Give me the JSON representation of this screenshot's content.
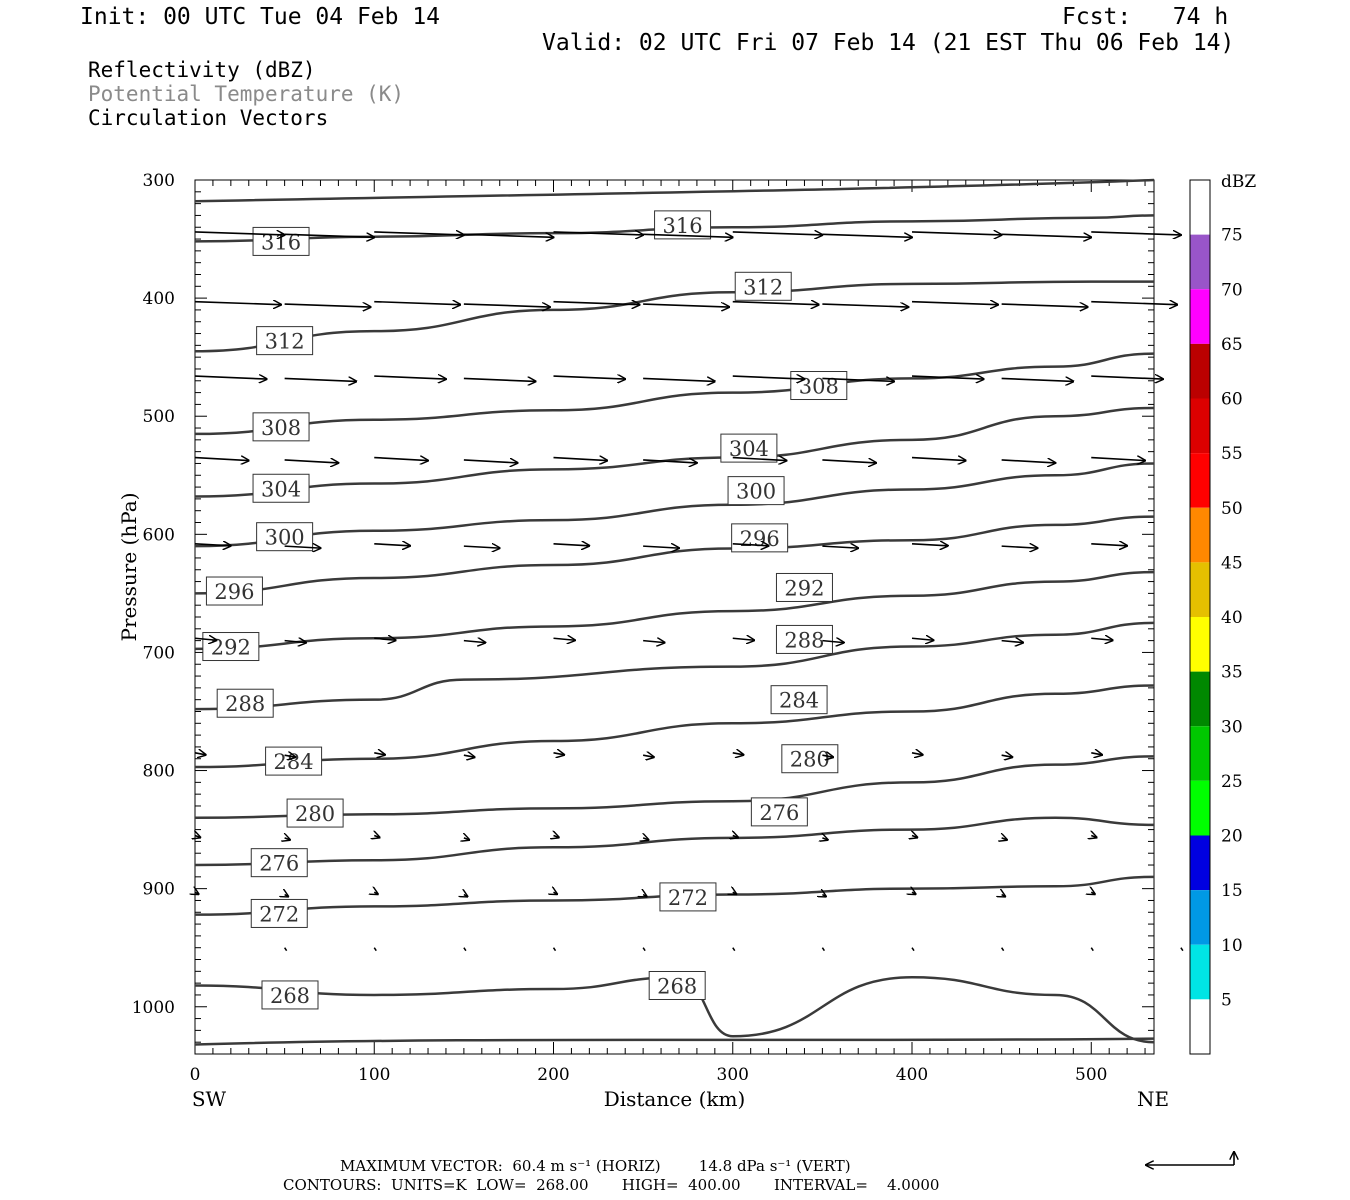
{
  "header": {
    "init": "Init: 00 UTC Tue 04 Feb 14",
    "fcst": "Fcst:   74 h",
    "valid": "Valid: 02 UTC Fri 07 Feb 14 (21 EST Thu 06 Feb 14)"
  },
  "legend": {
    "line1": "Reflectivity (dBZ)",
    "line2": "Potential Temperature (K)",
    "line3": "Circulation Vectors"
  },
  "footer": {
    "max_vector": "MAXIMUM VECTOR:  60.4 m s⁻¹ (HORIZ)        14.8 dPa s⁻¹ (VERT)",
    "contours": "CONTOURS:  UNITS=K  LOW=  268.00       HIGH=  400.00       INTERVAL=    4.0000"
  },
  "chart_data": {
    "type": "line",
    "title": "",
    "xlabel": "Distance (km)",
    "ylabel": "Pressure (hPa)",
    "x_left_label": "SW",
    "x_right_label": "NE",
    "xlim": [
      0,
      535
    ],
    "ylim": [
      1040,
      300
    ],
    "xticks": [
      0,
      100,
      200,
      300,
      400,
      500
    ],
    "yticks": [
      300,
      400,
      500,
      600,
      700,
      800,
      900,
      1000
    ],
    "colorbar": {
      "units": "dBZ",
      "levels": [
        5,
        10,
        15,
        20,
        25,
        30,
        35,
        40,
        45,
        50,
        55,
        60,
        65,
        70,
        75
      ],
      "colors": [
        "#ffffff",
        "#00e5e5",
        "#0099e5",
        "#0000e0",
        "#00ff00",
        "#00c800",
        "#008800",
        "#ffff00",
        "#e5c000",
        "#ff8800",
        "#ff0000",
        "#dd0000",
        "#bb0000",
        "#ff00ff",
        "#9955c9",
        "#ffffff"
      ]
    },
    "series": [
      {
        "name": "316",
        "label_at": [
          48,
          352
        ],
        "values": [
          [
            0,
            352
          ],
          [
            100,
            348
          ],
          [
            200,
            345
          ],
          [
            300,
            340
          ],
          [
            400,
            335
          ],
          [
            500,
            332
          ],
          [
            535,
            330
          ]
        ]
      },
      {
        "name": "312",
        "label_at": [
          50,
          436
        ],
        "values": [
          [
            0,
            445
          ],
          [
            100,
            428
          ],
          [
            200,
            410
          ],
          [
            300,
            395
          ],
          [
            400,
            388
          ],
          [
            500,
            386
          ],
          [
            535,
            386
          ]
        ]
      },
      {
        "name": "308",
        "label_at": [
          48,
          509
        ],
        "values": [
          [
            0,
            515
          ],
          [
            100,
            503
          ],
          [
            200,
            495
          ],
          [
            300,
            480
          ],
          [
            400,
            468
          ],
          [
            480,
            458
          ],
          [
            535,
            447
          ]
        ]
      },
      {
        "name": "304",
        "label_at": [
          48,
          561
        ],
        "values": [
          [
            0,
            568
          ],
          [
            100,
            557
          ],
          [
            200,
            545
          ],
          [
            300,
            535
          ],
          [
            400,
            520
          ],
          [
            480,
            500
          ],
          [
            535,
            493
          ]
        ]
      },
      {
        "name": "300",
        "label_at": [
          50,
          602
        ],
        "values": [
          [
            0,
            610
          ],
          [
            100,
            597
          ],
          [
            200,
            588
          ],
          [
            300,
            575
          ],
          [
            400,
            562
          ],
          [
            480,
            550
          ],
          [
            535,
            540
          ]
        ]
      },
      {
        "name": "296",
        "label_at": [
          22,
          648
        ],
        "values": [
          [
            0,
            650
          ],
          [
            100,
            637
          ],
          [
            200,
            626
          ],
          [
            300,
            612
          ],
          [
            400,
            605
          ],
          [
            480,
            592
          ],
          [
            535,
            585
          ]
        ]
      },
      {
        "name": "292",
        "label_at": [
          20,
          695
        ],
        "values": [
          [
            0,
            697
          ],
          [
            100,
            688
          ],
          [
            200,
            678
          ],
          [
            300,
            665
          ],
          [
            400,
            652
          ],
          [
            480,
            640
          ],
          [
            535,
            632
          ]
        ]
      },
      {
        "name": "288",
        "label_at": [
          28,
          743
        ],
        "values": [
          [
            0,
            748
          ],
          [
            100,
            740
          ],
          [
            150,
            723
          ],
          [
            300,
            712
          ],
          [
            400,
            695
          ],
          [
            480,
            685
          ],
          [
            535,
            675
          ]
        ]
      },
      {
        "name": "284",
        "label_at": [
          55,
          792
        ],
        "values": [
          [
            0,
            797
          ],
          [
            100,
            790
          ],
          [
            200,
            775
          ],
          [
            300,
            760
          ],
          [
            400,
            750
          ],
          [
            480,
            735
          ],
          [
            535,
            728
          ]
        ]
      },
      {
        "name": "280",
        "label_at": [
          67,
          836
        ],
        "values": [
          [
            0,
            840
          ],
          [
            100,
            837
          ],
          [
            200,
            832
          ],
          [
            300,
            826
          ],
          [
            400,
            810
          ],
          [
            480,
            795
          ],
          [
            535,
            788
          ]
        ]
      },
      {
        "name": "276",
        "label_at": [
          47,
          878
        ],
        "values": [
          [
            0,
            880
          ],
          [
            100,
            876
          ],
          [
            200,
            865
          ],
          [
            300,
            857
          ],
          [
            400,
            850
          ],
          [
            480,
            840
          ],
          [
            535,
            846
          ]
        ]
      },
      {
        "name": "272",
        "label_at": [
          47,
          921
        ],
        "values": [
          [
            0,
            922
          ],
          [
            100,
            915
          ],
          [
            200,
            910
          ],
          [
            300,
            905
          ],
          [
            400,
            900
          ],
          [
            480,
            898
          ],
          [
            535,
            890
          ]
        ]
      },
      {
        "name": "268",
        "label_at": [
          53,
          990
        ],
        "values": [
          [
            0,
            982
          ],
          [
            100,
            990
          ],
          [
            200,
            985
          ],
          [
            270,
            975
          ],
          [
            300,
            1025
          ],
          [
            400,
            975
          ],
          [
            480,
            990
          ],
          [
            535,
            1030
          ]
        ]
      }
    ],
    "vectors_note": "circulation vectors shown as arrows; mostly westerly (left-to-right) flow, strongest aloft"
  }
}
